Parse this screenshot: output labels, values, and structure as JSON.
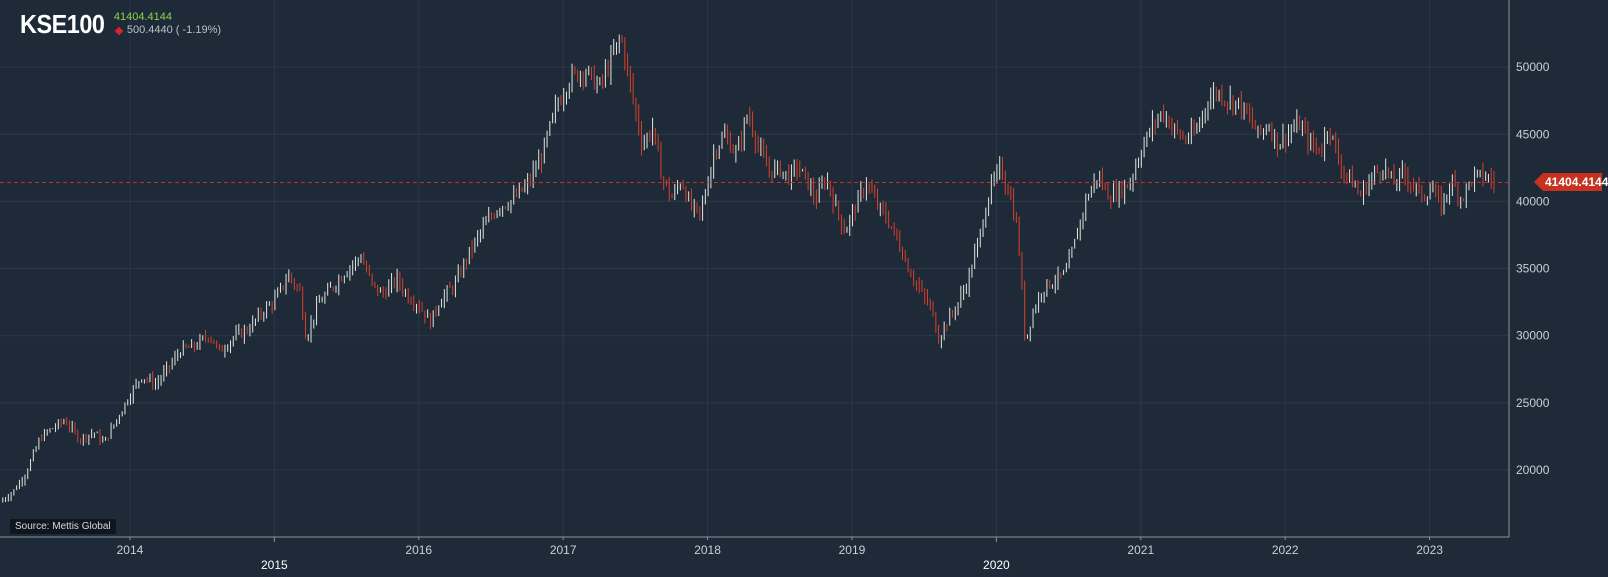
{
  "header": {
    "ticker": "KSE100",
    "last_value": "41404.4144",
    "change": "500.4440 ( -1.19%)",
    "change_direction_icon": "down-diamond-icon"
  },
  "source": "Source: Mettis Global",
  "current_price_tag": "41404.4144",
  "colors": {
    "background": "#1e2a38",
    "up_bar": "#dfe6dd",
    "down_bar": "#d8402a",
    "last_value": "#8ed24a",
    "price_tag": "#c6321f"
  },
  "chart_data": {
    "type": "ohlc",
    "title": "KSE100",
    "y_axis": {
      "position": "right",
      "ticks": [
        20000,
        25000,
        30000,
        35000,
        40000,
        45000,
        50000
      ],
      "ylim": [
        15000,
        55000
      ]
    },
    "x_axis": {
      "tick_labels": [
        "2014",
        "2015",
        "2016",
        "2017",
        "2018",
        "2019",
        "2020",
        "2021",
        "2022",
        "2023"
      ],
      "xlim": [
        "2013.1",
        "2023.55"
      ]
    },
    "grid": true,
    "reference_line": {
      "value": 41404.4144,
      "style": "dashed"
    },
    "close_series": [
      [
        2013.1,
        17600
      ],
      [
        2013.2,
        18500
      ],
      [
        2013.28,
        19800
      ],
      [
        2013.38,
        22400
      ],
      [
        2013.45,
        23000
      ],
      [
        2013.55,
        23700
      ],
      [
        2013.65,
        22300
      ],
      [
        2013.75,
        22800
      ],
      [
        2013.82,
        22000
      ],
      [
        2013.92,
        24000
      ],
      [
        2014.0,
        25600
      ],
      [
        2014.08,
        27000
      ],
      [
        2014.18,
        26400
      ],
      [
        2014.28,
        27800
      ],
      [
        2014.35,
        28900
      ],
      [
        2014.45,
        29200
      ],
      [
        2014.55,
        30100
      ],
      [
        2014.62,
        28800
      ],
      [
        2014.72,
        29900
      ],
      [
        2014.82,
        30500
      ],
      [
        2014.92,
        31800
      ],
      [
        2015.0,
        32600
      ],
      [
        2015.1,
        34500
      ],
      [
        2015.18,
        33200
      ],
      [
        2015.22,
        29800
      ],
      [
        2015.3,
        32300
      ],
      [
        2015.4,
        33600
      ],
      [
        2015.5,
        34900
      ],
      [
        2015.6,
        35900
      ],
      [
        2015.68,
        33700
      ],
      [
        2015.75,
        33100
      ],
      [
        2015.85,
        34200
      ],
      [
        2015.92,
        33000
      ],
      [
        2016.0,
        32300
      ],
      [
        2016.08,
        31000
      ],
      [
        2016.15,
        32700
      ],
      [
        2016.25,
        33800
      ],
      [
        2016.35,
        36200
      ],
      [
        2016.45,
        38100
      ],
      [
        2016.55,
        39600
      ],
      [
        2016.65,
        40100
      ],
      [
        2016.75,
        41200
      ],
      [
        2016.85,
        43300
      ],
      [
        2016.95,
        47000
      ],
      [
        2017.05,
        49200
      ],
      [
        2017.15,
        49800
      ],
      [
        2017.25,
        48500
      ],
      [
        2017.33,
        50500
      ],
      [
        2017.4,
        52300
      ],
      [
        2017.48,
        47800
      ],
      [
        2017.55,
        44200
      ],
      [
        2017.62,
        45500
      ],
      [
        2017.68,
        42000
      ],
      [
        2017.75,
        40200
      ],
      [
        2017.82,
        41600
      ],
      [
        2017.88,
        39600
      ],
      [
        2017.95,
        39000
      ],
      [
        2018.05,
        43900
      ],
      [
        2018.12,
        44900
      ],
      [
        2018.2,
        43500
      ],
      [
        2018.28,
        46600
      ],
      [
        2018.35,
        44100
      ],
      [
        2018.42,
        42300
      ],
      [
        2018.5,
        42400
      ],
      [
        2018.57,
        41800
      ],
      [
        2018.62,
        42600
      ],
      [
        2018.68,
        41700
      ],
      [
        2018.75,
        40100
      ],
      [
        2018.82,
        41800
      ],
      [
        2018.88,
        39800
      ],
      [
        2018.95,
        37800
      ],
      [
        2019.02,
        39500
      ],
      [
        2019.1,
        41400
      ],
      [
        2019.18,
        39600
      ],
      [
        2019.25,
        38600
      ],
      [
        2019.32,
        37000
      ],
      [
        2019.4,
        34800
      ],
      [
        2019.48,
        33200
      ],
      [
        2019.55,
        32000
      ],
      [
        2019.6,
        29800
      ],
      [
        2019.65,
        30900
      ],
      [
        2019.72,
        32100
      ],
      [
        2019.8,
        34000
      ],
      [
        2019.88,
        37200
      ],
      [
        2019.95,
        40700
      ],
      [
        2020.03,
        42500
      ],
      [
        2020.1,
        40300
      ],
      [
        2020.15,
        37600
      ],
      [
        2020.2,
        29500
      ],
      [
        2020.25,
        31700
      ],
      [
        2020.32,
        33500
      ],
      [
        2020.4,
        34100
      ],
      [
        2020.48,
        34600
      ],
      [
        2020.55,
        37200
      ],
      [
        2020.62,
        40100
      ],
      [
        2020.7,
        41900
      ],
      [
        2020.78,
        40400
      ],
      [
        2020.85,
        40800
      ],
      [
        2020.92,
        41300
      ],
      [
        2021.0,
        43800
      ],
      [
        2021.08,
        45600
      ],
      [
        2021.15,
        46700
      ],
      [
        2021.22,
        45500
      ],
      [
        2021.3,
        44600
      ],
      [
        2021.38,
        45100
      ],
      [
        2021.45,
        47200
      ],
      [
        2021.52,
        48200
      ],
      [
        2021.6,
        47600
      ],
      [
        2021.68,
        47300
      ],
      [
        2021.75,
        46200
      ],
      [
        2021.82,
        44900
      ],
      [
        2021.88,
        45800
      ],
      [
        2021.95,
        44300
      ],
      [
        2022.03,
        45200
      ],
      [
        2022.1,
        45700
      ],
      [
        2022.18,
        44200
      ],
      [
        2022.25,
        43800
      ],
      [
        2022.3,
        45800
      ],
      [
        2022.38,
        42600
      ],
      [
        2022.45,
        41700
      ],
      [
        2022.52,
        40400
      ],
      [
        2022.6,
        41800
      ],
      [
        2022.68,
        42600
      ],
      [
        2022.75,
        41300
      ],
      [
        2022.82,
        42100
      ],
      [
        2022.88,
        41300
      ],
      [
        2022.95,
        40400
      ],
      [
        2023.02,
        40900
      ],
      [
        2023.08,
        39600
      ],
      [
        2023.15,
        41500
      ],
      [
        2023.22,
        40200
      ],
      [
        2023.3,
        41800
      ],
      [
        2023.38,
        41900
      ],
      [
        2023.45,
        41404
      ]
    ]
  }
}
